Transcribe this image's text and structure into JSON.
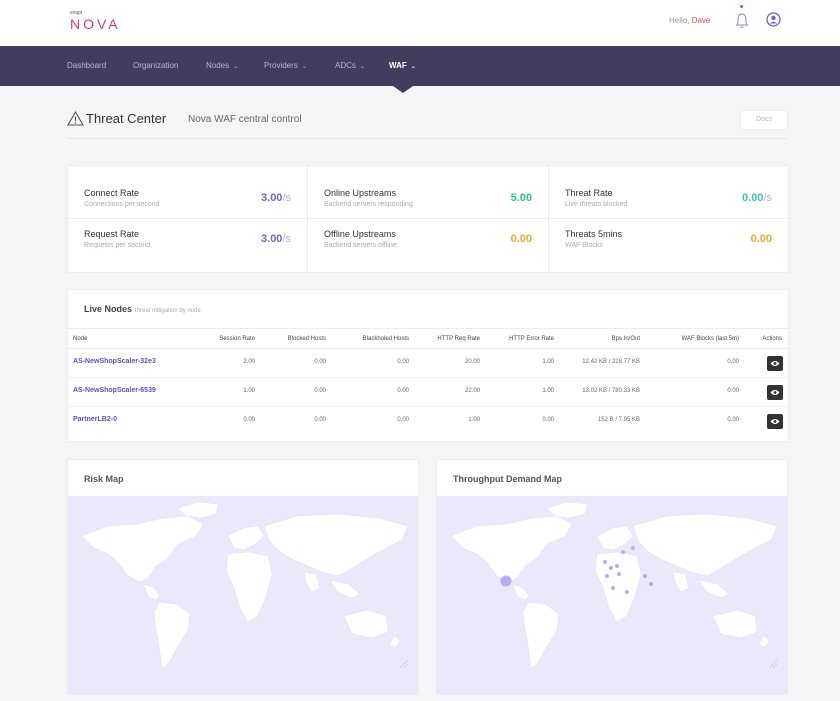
{
  "brand": {
    "small": "snapt",
    "name": "NOVA"
  },
  "header": {
    "greeting": "Hello,",
    "user": "Dave"
  },
  "nav": [
    {
      "label": "Dashboard",
      "caret": ""
    },
    {
      "label": "Organization",
      "caret": ""
    },
    {
      "label": "Nodes",
      "caret": "⌄"
    },
    {
      "label": "Providers",
      "caret": "⌄"
    },
    {
      "label": "ADCs",
      "caret": "⌄"
    },
    {
      "label": "WAF",
      "caret": "⌄"
    }
  ],
  "page": {
    "title": "Threat Center",
    "subtitle": "Nova WAF central control",
    "docs_label": "Docs"
  },
  "stats": {
    "connect_rate": {
      "label": "Connect Rate",
      "desc": "Connections per second",
      "value": "3.00",
      "unit": "/s"
    },
    "request_rate": {
      "label": "Request Rate",
      "desc": "Requests per second",
      "value": "3.00",
      "unit": "/s"
    },
    "online_upstreams": {
      "label": "Online Upstreams",
      "desc": "Backend servers responding",
      "value": "5.00"
    },
    "offline_upstreams": {
      "label": "Offline Upstreams",
      "desc": "Backend servers offline",
      "value": "0.00"
    },
    "threat_rate": {
      "label": "Threat Rate",
      "desc": "Live threats blocked",
      "value": "0.00",
      "unit": "/s"
    },
    "threats_5mins": {
      "label": "Threats 5mins",
      "desc": "WAF Blocks",
      "value": "0.00"
    }
  },
  "live_nodes": {
    "title": "Live Nodes",
    "subtitle": "threat mitigation by node",
    "columns": [
      "Node",
      "Session Rate",
      "Blocked Hosts",
      "Blackholed Hosts",
      "HTTP Req Rate",
      "HTTP Error Rate",
      "Bps In/Out",
      "WAF Blocks (last 5m)",
      "Actions"
    ],
    "rows": [
      {
        "node": "AS-NewShopScaler-32e3",
        "session_rate": "2.00",
        "blocked_hosts": "0.00",
        "blackholed_hosts": "0.00",
        "http_req_rate": "20.00",
        "http_error_rate": "1.00",
        "bps": "12.42 KB / 228.77 KB",
        "waf_blocks": "0.00"
      },
      {
        "node": "AS-NewShopScaler-6539",
        "session_rate": "1.00",
        "blocked_hosts": "0.00",
        "blackholed_hosts": "0.00",
        "http_req_rate": "22.00",
        "http_error_rate": "1.00",
        "bps": "13.02 KB / 780.33 KB",
        "waf_blocks": "0.00"
      },
      {
        "node": "PartnerLB2-0",
        "session_rate": "0.00",
        "blocked_hosts": "0.00",
        "blackholed_hosts": "0.00",
        "http_req_rate": "1.00",
        "http_error_rate": "0.00",
        "bps": "152 B / 7.95 KB",
        "waf_blocks": "0.00"
      }
    ]
  },
  "maps": {
    "risk": {
      "title": "Risk Map"
    },
    "throughput": {
      "title": "Throughput Demand Map"
    }
  },
  "colors": {
    "nav_bg": "#403d5e",
    "accent": "#6d64c5",
    "green": "#2fbf8c",
    "orange": "#f0a72e",
    "map_bg": "#e9e9fb",
    "map_land": "#ffffff",
    "marker": "#b7aef0"
  }
}
